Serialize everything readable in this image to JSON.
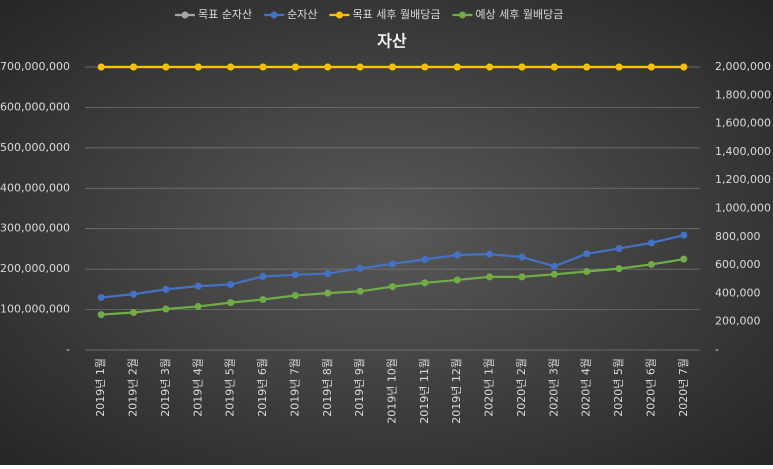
{
  "chart_data": {
    "type": "line",
    "title": "자산",
    "categories": [
      "2019년 1월",
      "2019년 2월",
      "2019년 3월",
      "2019년 4월",
      "2019년 5월",
      "2019년 6월",
      "2019년 7월",
      "2019년 8월",
      "2019년 9월",
      "2019년 10월",
      "2019년 11월",
      "2019년 12월",
      "2020년 1월",
      "2020년 2월",
      "2020년 3월",
      "2020년 4월",
      "2020년 5월",
      "2020년 6월",
      "2020년 7월"
    ],
    "series": [
      {
        "name": "목표 순자산",
        "color": "#a5a5a5",
        "axis": "y",
        "values": [
          700000000,
          700000000,
          700000000,
          700000000,
          700000000,
          700000000,
          700000000,
          700000000,
          700000000,
          700000000,
          700000000,
          700000000,
          700000000,
          700000000,
          700000000,
          700000000,
          700000000,
          700000000,
          700000000
        ]
      },
      {
        "name": "순자산",
        "color": "#4472c4",
        "axis": "y",
        "values": [
          130000000,
          138000000,
          150000000,
          158000000,
          162000000,
          182000000,
          186000000,
          189000000,
          202000000,
          213000000,
          224000000,
          235000000,
          237000000,
          230000000,
          207000000,
          238000000,
          251000000,
          265000000,
          284000000
        ]
      },
      {
        "name": "목표 세후 월배당금",
        "color": "#ffc000",
        "axis": "y2",
        "values": [
          2000000,
          2000000,
          2000000,
          2000000,
          2000000,
          2000000,
          2000000,
          2000000,
          2000000,
          2000000,
          2000000,
          2000000,
          2000000,
          2000000,
          2000000,
          2000000,
          2000000,
          2000000,
          2000000
        ]
      },
      {
        "name": "예상 세후 월배당금",
        "color": "#70ad47",
        "axis": "y2",
        "values": [
          250000,
          265000,
          290000,
          308000,
          335000,
          357000,
          385000,
          402000,
          415000,
          448000,
          475000,
          495000,
          517000,
          517000,
          535000,
          555000,
          575000,
          605000,
          642000
        ]
      }
    ],
    "ylim": [
      0,
      700000000
    ],
    "yticks": [
      {
        "value": 0,
        "label": "-"
      },
      {
        "value": 100000000,
        "label": "100,000,000"
      },
      {
        "value": 200000000,
        "label": "200,000,000"
      },
      {
        "value": 300000000,
        "label": "300,000,000"
      },
      {
        "value": 400000000,
        "label": "400,000,000"
      },
      {
        "value": 500000000,
        "label": "500,000,000"
      },
      {
        "value": 600000000,
        "label": "600,000,000"
      },
      {
        "value": 700000000,
        "label": "700,000,000"
      }
    ],
    "y2lim": [
      0,
      2000000
    ],
    "y2ticks": [
      {
        "value": 0,
        "label": "-"
      },
      {
        "value": 200000,
        "label": "200,000"
      },
      {
        "value": 400000,
        "label": "400,000"
      },
      {
        "value": 600000,
        "label": "600,000"
      },
      {
        "value": 800000,
        "label": "800,000"
      },
      {
        "value": 1000000,
        "label": "1,000,000"
      },
      {
        "value": 1200000,
        "label": "1,200,000"
      },
      {
        "value": 1400000,
        "label": "1,400,000"
      },
      {
        "value": 1600000,
        "label": "1,600,000"
      },
      {
        "value": 1800000,
        "label": "1,800,000"
      },
      {
        "value": 2000000,
        "label": "2,000,000"
      }
    ],
    "grid": true,
    "legend": "top"
  }
}
